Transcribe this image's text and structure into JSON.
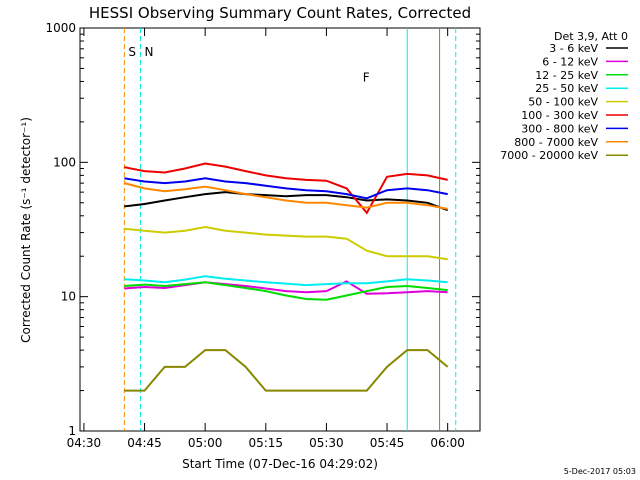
{
  "chart_data": {
    "type": "line",
    "title": "HESSI Observing Summary Count Rates, Corrected",
    "xlabel": "Start Time (07-Dec-16 04:29:02)",
    "ylabel": "Corrected Count Rate (s⁻¹ detector⁻¹)",
    "y_scale": "log",
    "ylim": [
      1,
      1000
    ],
    "x_range": [
      "04:29:02",
      "06:08"
    ],
    "x_ticks": [
      "04:30",
      "04:45",
      "05:00",
      "05:15",
      "05:30",
      "05:45",
      "06:00"
    ],
    "y_ticks": [
      "1",
      "10",
      "100",
      "1000"
    ],
    "legend_header": "Det 3,9, Att 0",
    "legend_position": "top-right",
    "series": [
      {
        "name": "3 - 6 keV",
        "color": "#000000",
        "x": [
          "04:40",
          "04:45",
          "04:50",
          "04:55",
          "05:00",
          "05:05",
          "05:10",
          "05:15",
          "05:20",
          "05:25",
          "05:30",
          "05:35",
          "05:40",
          "05:45",
          "05:50",
          "05:55",
          "06:00"
        ],
        "y": [
          47,
          49,
          52,
          55,
          58,
          60,
          58,
          57,
          56,
          57,
          57,
          55,
          52,
          53,
          52,
          50,
          44
        ]
      },
      {
        "name": "6 - 12 keV",
        "color": "#dd00dd",
        "x": [
          "04:40",
          "04:45",
          "04:50",
          "04:55",
          "05:00",
          "05:05",
          "05:10",
          "05:15",
          "05:20",
          "05:25",
          "05:30",
          "05:35",
          "05:40",
          "05:45",
          "05:50",
          "05:55",
          "06:00"
        ],
        "y": [
          11.5,
          11.8,
          11.6,
          12.2,
          12.8,
          12.4,
          12,
          11.5,
          11,
          10.8,
          11,
          13,
          10.5,
          10.6,
          10.8,
          11,
          10.8
        ]
      },
      {
        "name": "12 - 25 keV",
        "color": "#00dd00",
        "x": [
          "04:40",
          "04:45",
          "04:50",
          "04:55",
          "05:00",
          "05:05",
          "05:10",
          "05:15",
          "05:20",
          "05:25",
          "05:30",
          "05:35",
          "05:40",
          "05:45",
          "05:50",
          "05:55",
          "06:00"
        ],
        "y": [
          12,
          12.3,
          12,
          12.4,
          12.8,
          12.2,
          11.6,
          11,
          10.2,
          9.6,
          9.5,
          10.2,
          11,
          11.8,
          12,
          11.6,
          11.2
        ]
      },
      {
        "name": "25 - 50 keV",
        "color": "#00eeee",
        "x": [
          "04:40",
          "04:45",
          "04:50",
          "04:55",
          "05:00",
          "05:05",
          "05:10",
          "05:15",
          "05:20",
          "05:25",
          "05:30",
          "05:35",
          "05:40",
          "05:45",
          "05:50",
          "05:55",
          "06:00"
        ],
        "y": [
          13.5,
          13.2,
          12.8,
          13.4,
          14.2,
          13.6,
          13.2,
          12.8,
          12.5,
          12.2,
          12.4,
          12.6,
          12.6,
          13,
          13.5,
          13.2,
          12.8
        ]
      },
      {
        "name": "50 - 100 keV",
        "color": "#cccc00",
        "x": [
          "04:40",
          "04:45",
          "04:50",
          "04:55",
          "05:00",
          "05:05",
          "05:10",
          "05:15",
          "05:20",
          "05:25",
          "05:30",
          "05:35",
          "05:40",
          "05:45",
          "05:50",
          "05:55",
          "06:00"
        ],
        "y": [
          32,
          31,
          30,
          31,
          33,
          31,
          30,
          29,
          28.5,
          28,
          28,
          27,
          22,
          20,
          20,
          20,
          19
        ]
      },
      {
        "name": "100 - 300 keV",
        "color": "#ee0000",
        "x": [
          "04:40",
          "04:45",
          "04:50",
          "04:55",
          "05:00",
          "05:05",
          "05:10",
          "05:15",
          "05:20",
          "05:25",
          "05:30",
          "05:35",
          "05:40",
          "05:45",
          "05:50",
          "05:55",
          "06:00"
        ],
        "y": [
          92,
          86,
          84,
          90,
          98,
          93,
          86,
          80,
          76,
          74,
          73,
          64,
          42,
          78,
          82,
          80,
          74
        ]
      },
      {
        "name": "300 - 800 keV",
        "color": "#0000ee",
        "x": [
          "04:40",
          "04:45",
          "04:50",
          "04:55",
          "05:00",
          "05:05",
          "05:10",
          "05:15",
          "05:20",
          "05:25",
          "05:30",
          "05:35",
          "05:40",
          "05:45",
          "05:50",
          "05:55",
          "06:00"
        ],
        "y": [
          76,
          72,
          70,
          72,
          76,
          72,
          70,
          67,
          64,
          62,
          61,
          58,
          54,
          62,
          64,
          62,
          58
        ]
      },
      {
        "name": "800 - 7000 keV",
        "color": "#ff8800",
        "x": [
          "04:40",
          "04:45",
          "04:50",
          "04:55",
          "05:00",
          "05:05",
          "05:10",
          "05:15",
          "05:20",
          "05:25",
          "05:30",
          "05:35",
          "05:40",
          "05:45",
          "05:50",
          "05:55",
          "06:00"
        ],
        "y": [
          70,
          64,
          61,
          63,
          66,
          62,
          58,
          55,
          52,
          50,
          50,
          48,
          46,
          50,
          50,
          48,
          45
        ]
      },
      {
        "name": "7000 - 20000 keV",
        "color": "#888800",
        "x": [
          "04:40",
          "04:45",
          "04:50",
          "04:55",
          "05:00",
          "05:05",
          "05:10",
          "05:15",
          "05:20",
          "05:25",
          "05:30",
          "05:35",
          "05:40",
          "05:45",
          "05:50",
          "05:55",
          "06:00"
        ],
        "y": [
          2,
          2,
          3,
          3,
          4,
          4,
          3,
          2,
          2,
          2,
          2,
          2,
          2,
          3,
          4,
          4,
          3
        ]
      }
    ],
    "annotations": [
      {
        "label": "S",
        "color": "#ff8800",
        "x": "04:40"
      },
      {
        "label": "N",
        "color": "#00eeee",
        "x": "04:44"
      },
      {
        "label": "F",
        "color": "#ee0000",
        "x": "05:38"
      }
    ],
    "vertical_lines": [
      {
        "x": "04:40",
        "color": "#ff8800",
        "style": "dashed"
      },
      {
        "x": "04:44",
        "color": "#00eeee",
        "style": "dashed"
      },
      {
        "x": "05:50",
        "color": "#00eeee",
        "style": "solid"
      },
      {
        "x": "05:58",
        "color": "#888800",
        "style": "solid"
      },
      {
        "x": "06:02",
        "color": "#00eeee",
        "style": "dashed"
      }
    ],
    "footer_date": "5-Dec-2017 05:03"
  }
}
